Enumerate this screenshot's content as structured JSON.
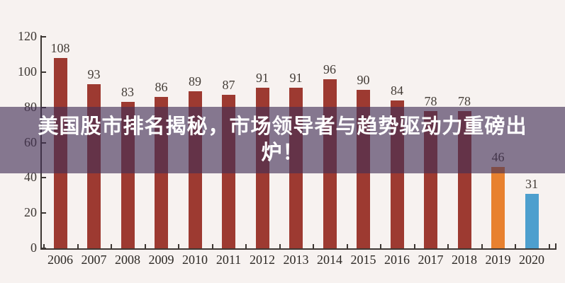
{
  "banner": {
    "lines": [
      "美国股市排名揭秘，市场领导者与趋势驱动力重磅出",
      "炉！"
    ],
    "full_title": "美国股市排名揭秘，市场领导者与趋势驱动力重磅出炉！",
    "text_color": "#ffffff",
    "overlay_color": "rgba(66,48,85,0.63)"
  },
  "chart_data": {
    "type": "bar",
    "title": "",
    "xlabel": "",
    "ylabel": "",
    "categories": [
      "2006",
      "2007",
      "2008",
      "2009",
      "2010",
      "2011",
      "2012",
      "2013",
      "2014",
      "2015",
      "2016",
      "2017",
      "2018",
      "2019",
      "2020"
    ],
    "values": [
      108,
      93,
      83,
      86,
      89,
      87,
      91,
      91,
      96,
      90,
      84,
      78,
      78,
      46,
      31
    ],
    "bar_colors": [
      "#9d3a31",
      "#9d3a31",
      "#9d3a31",
      "#9d3a31",
      "#9d3a31",
      "#9d3a31",
      "#9d3a31",
      "#9d3a31",
      "#9d3a31",
      "#9d3a31",
      "#9d3a31",
      "#9d3a31",
      "#9d3a31",
      "#e8812f",
      "#4d9fce"
    ],
    "value_labels_shown": true,
    "ylim": [
      0,
      120
    ],
    "yticks": [
      0,
      20,
      40,
      60,
      80,
      100,
      120
    ],
    "grid": false,
    "legend": "none",
    "background": "#f7f2f0",
    "axis_color": "#3d3733"
  }
}
